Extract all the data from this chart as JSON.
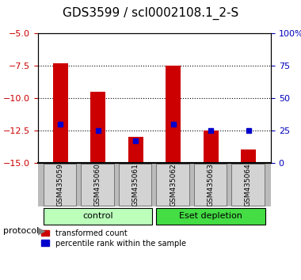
{
  "title": "GDS3599 / scl0002108.1_2-S",
  "samples": [
    "GSM435059",
    "GSM435060",
    "GSM435061",
    "GSM435062",
    "GSM435063",
    "GSM435064"
  ],
  "red_bar_tops": [
    -7.3,
    -9.5,
    -13.0,
    -7.5,
    -12.5,
    -14.0
  ],
  "red_bar_bottom": -15.0,
  "blue_dot_left_y": [
    -12.0,
    -12.5,
    -13.3,
    -12.0,
    -12.5,
    -12.5
  ],
  "left_ylim": [
    -15,
    -5
  ],
  "right_ylim": [
    0,
    100
  ],
  "left_yticks": [
    -5,
    -7.5,
    -10,
    -12.5,
    -15
  ],
  "right_yticks": [
    0,
    25,
    50,
    75,
    100
  ],
  "right_yticklabels": [
    "0",
    "25",
    "50",
    "75",
    "100%"
  ],
  "bar_color": "#cc0000",
  "dot_color": "#0000cc",
  "background_color": "#ffffff",
  "plot_bg_color": "#ffffff",
  "title_fontsize": 11,
  "axis_label_color_left": "#cc0000",
  "axis_label_color_right": "#0000bb"
}
